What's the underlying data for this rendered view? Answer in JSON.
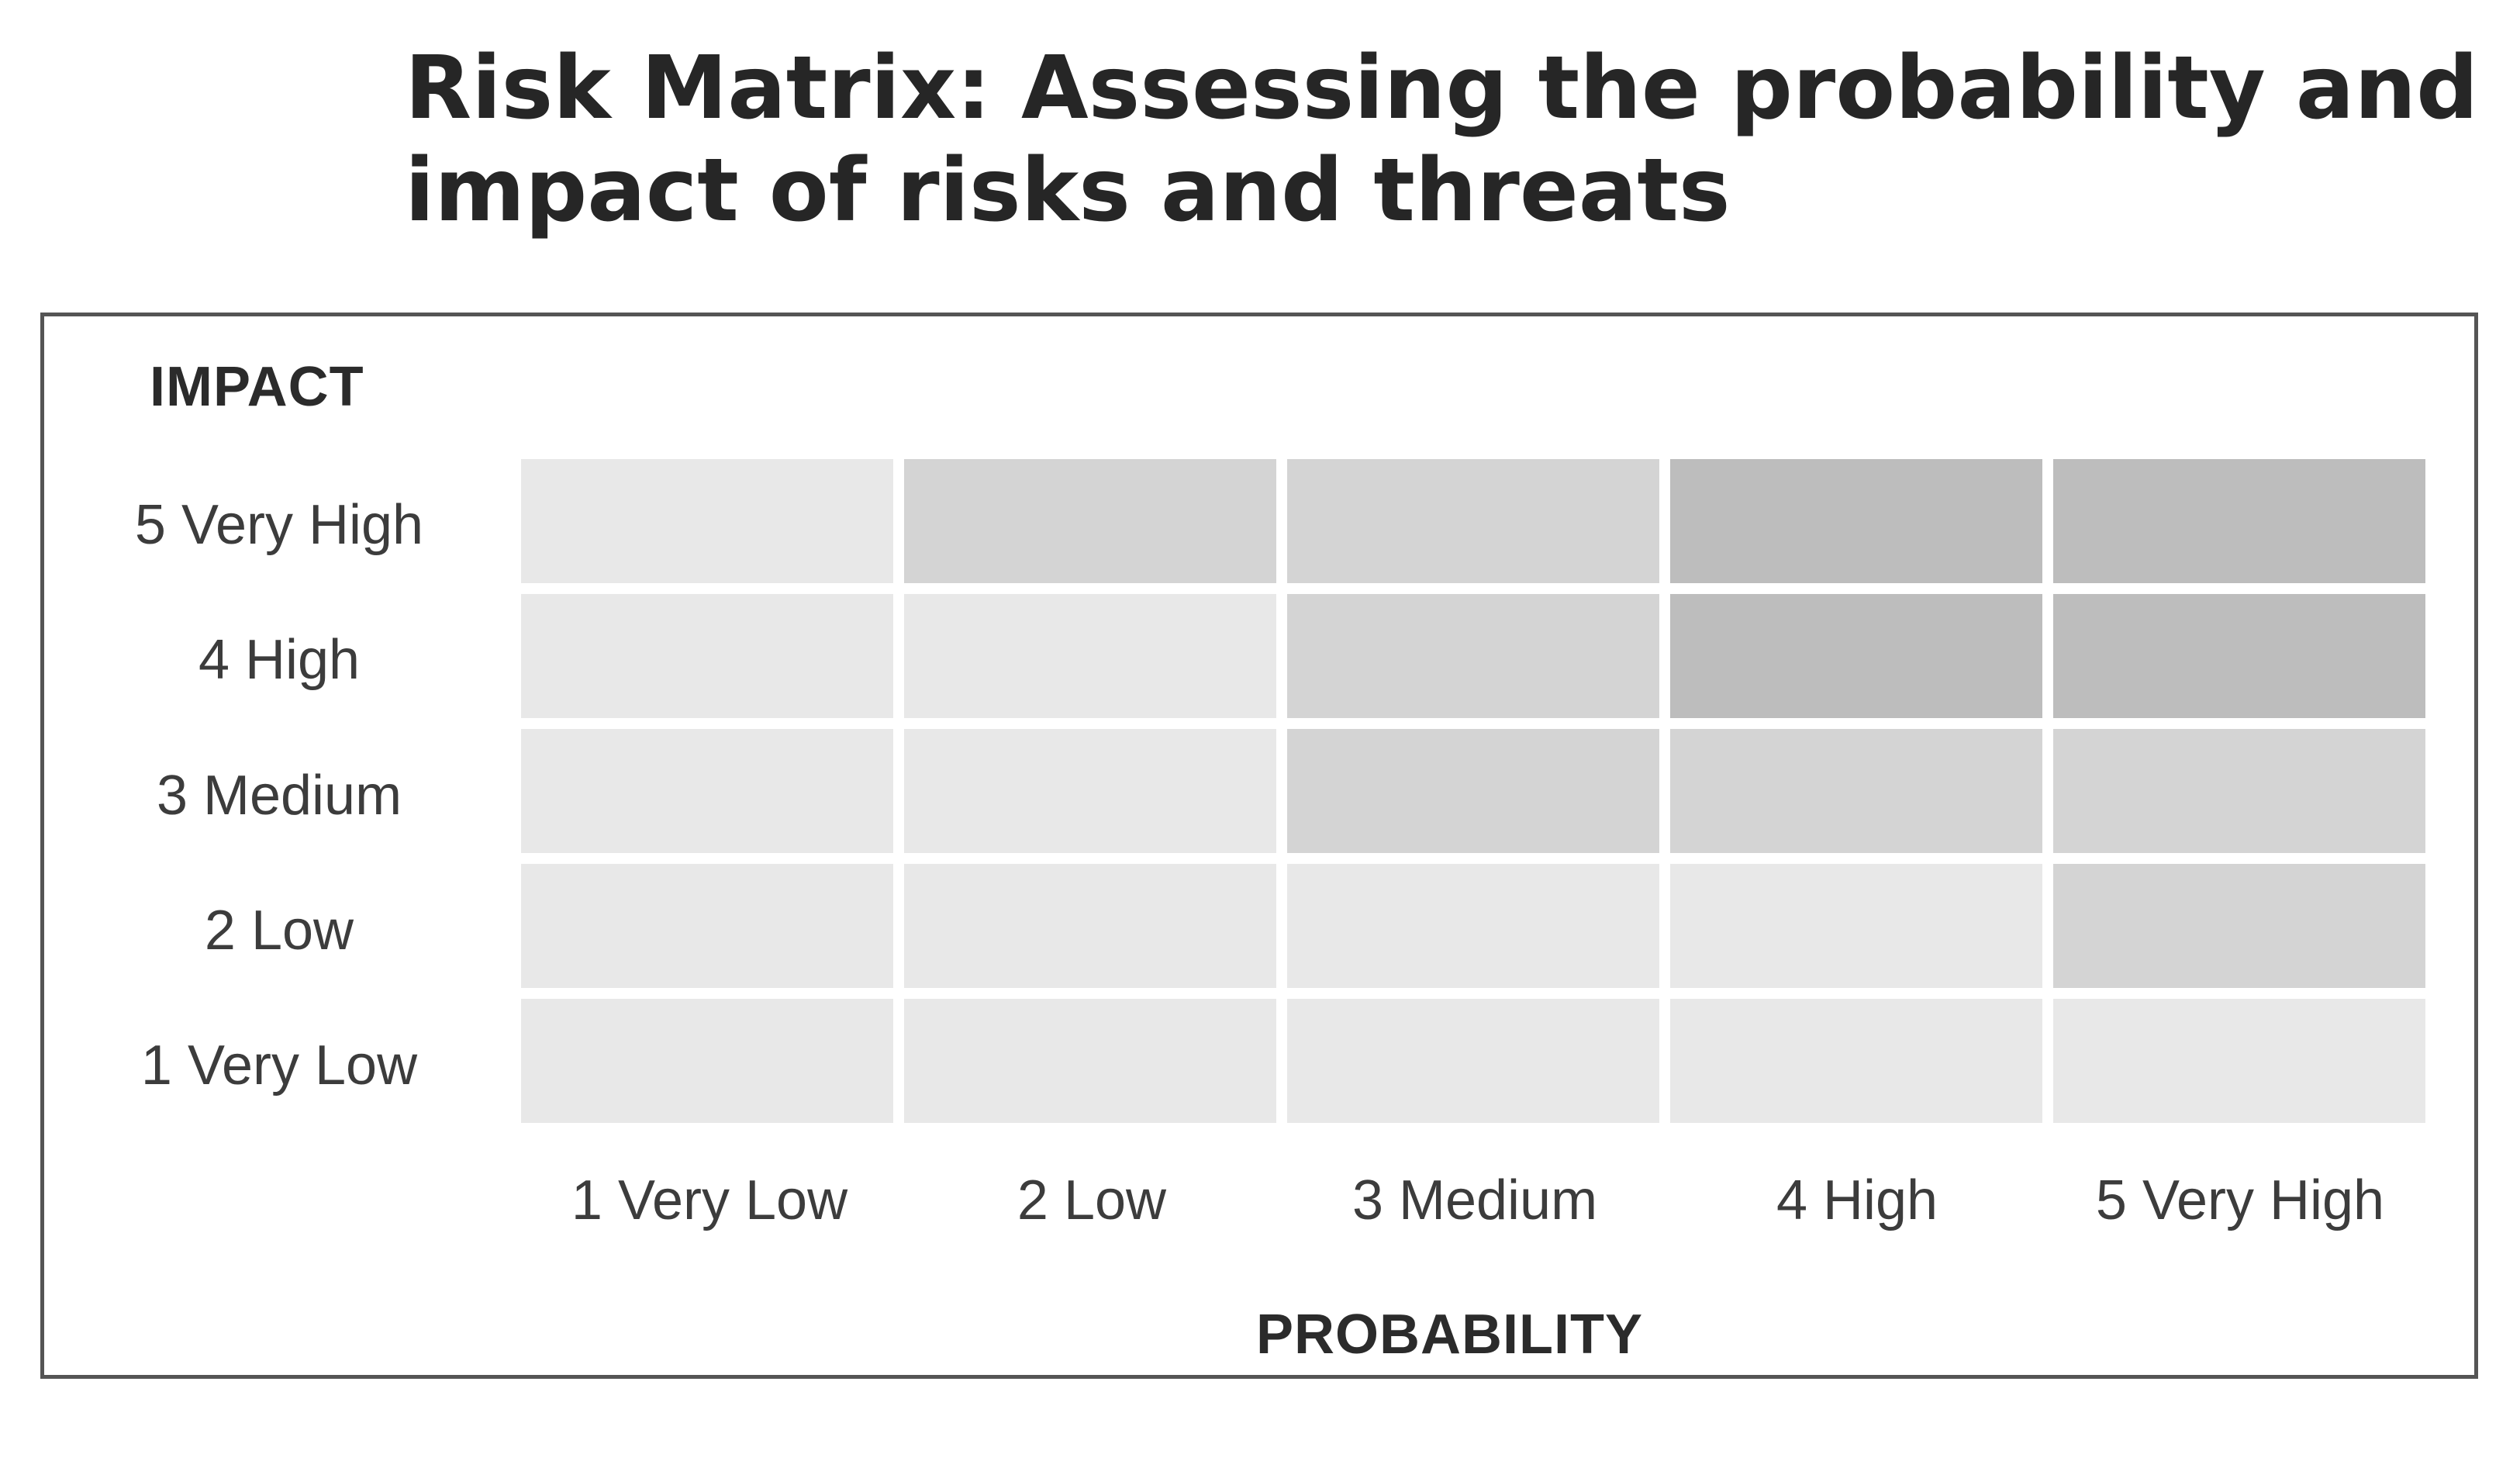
{
  "title": "Risk Matrix: Assessing the probability and impact of risks and threats",
  "matrix": {
    "impact_axis_title": "IMPACT",
    "probability_axis_title": "PROBABILITY",
    "impact_levels": [
      "5 Very High",
      "4 High",
      "3 Medium",
      "2 Low",
      "1 Very Low"
    ],
    "probability_levels": [
      "1 Very Low",
      "2 Low",
      "3 Medium",
      "4 High",
      "5 Very High"
    ],
    "shade_colors": {
      "light": "#e8e8e8",
      "medium": "#d4d4d4",
      "dark": "#bdbdbd"
    },
    "cell_shades": [
      [
        "light",
        "medium",
        "medium",
        "dark",
        "dark"
      ],
      [
        "light",
        "light",
        "medium",
        "dark",
        "dark"
      ],
      [
        "light",
        "light",
        "medium",
        "medium",
        "medium"
      ],
      [
        "light",
        "light",
        "light",
        "light",
        "medium"
      ],
      [
        "light",
        "light",
        "light",
        "light",
        "light"
      ]
    ]
  }
}
